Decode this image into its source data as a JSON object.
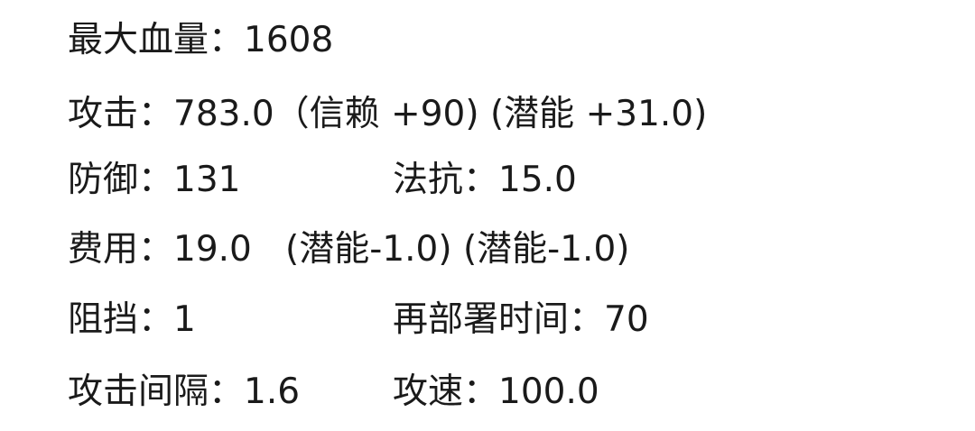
{
  "stats": {
    "max_hp": "最大血量：1608",
    "attack": "攻击：783.0（信赖 +90) (潜能 +31.0)",
    "defense": "防御：131",
    "res": "法抗：15.0",
    "cost": "费用：19.0   (潜能-1.0) (潜能-1.0)",
    "block": "阻挡：1",
    "redeploy": "再部署时间：70",
    "atk_interval": "攻击间隔：1.6",
    "atk_speed": "攻速：100.0"
  },
  "colors": {
    "text": "#1a1a1a",
    "background": "#ffffff"
  }
}
